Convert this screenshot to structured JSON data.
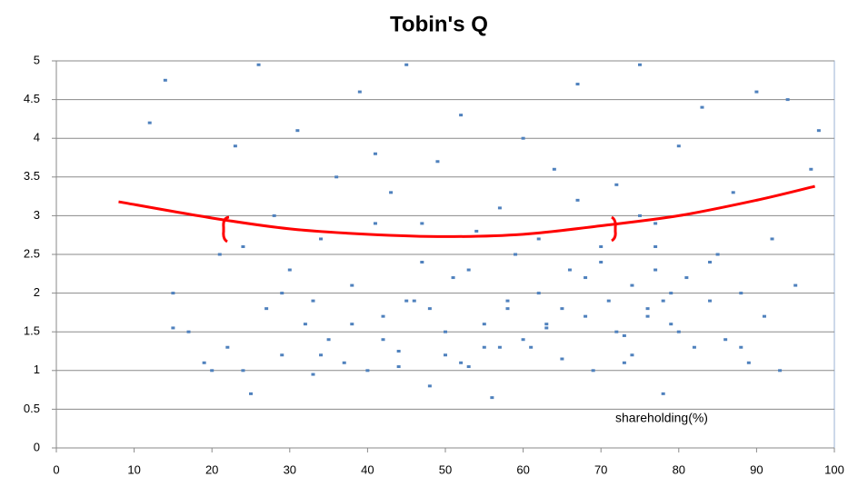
{
  "chart_data": {
    "type": "scatter",
    "title": "Tobin's Q",
    "x_label": "shareholding(%)",
    "xlim": [
      0,
      100
    ],
    "ylim": [
      0,
      5
    ],
    "xticks": [
      0,
      10,
      20,
      30,
      40,
      50,
      60,
      70,
      80,
      90,
      100
    ],
    "yticks": [
      0,
      0.5,
      1,
      1.5,
      2,
      2.5,
      3,
      3.5,
      4,
      4.5,
      5
    ],
    "grid": true,
    "series": [
      {
        "type": "scatter",
        "color": "#4f81bd",
        "x": [
          12,
          14,
          15,
          17,
          19,
          21,
          22,
          23,
          24,
          25,
          26,
          27,
          28,
          29,
          30,
          31,
          32,
          33,
          34,
          35,
          36,
          37,
          38,
          39,
          40,
          41,
          42,
          43,
          44,
          45,
          46,
          47,
          48,
          49,
          50,
          51,
          52,
          53,
          54,
          55,
          56,
          57,
          58,
          59,
          60,
          61,
          62,
          63,
          64,
          65,
          66,
          67,
          68,
          69,
          70,
          71,
          72,
          73,
          74,
          75,
          76,
          77,
          78,
          79,
          80,
          81,
          82,
          83,
          84,
          85,
          86,
          87,
          88,
          89,
          90,
          91,
          92,
          93,
          94,
          95,
          34,
          42,
          48,
          55,
          58,
          63,
          68,
          72,
          76,
          79,
          38,
          45,
          52,
          60,
          65,
          70,
          74,
          77,
          78,
          80,
          24,
          29,
          33,
          41,
          47,
          53,
          62,
          67,
          75,
          84,
          97,
          98,
          15,
          20,
          44,
          50,
          57,
          73,
          77,
          88
        ],
        "values": [
          4.2,
          4.75,
          2.0,
          1.5,
          1.1,
          2.5,
          1.3,
          3.9,
          1.0,
          0.7,
          4.95,
          1.8,
          3.0,
          1.2,
          2.3,
          4.1,
          1.6,
          0.95,
          2.7,
          1.4,
          3.5,
          1.1,
          2.1,
          4.6,
          1.0,
          2.9,
          1.7,
          3.3,
          1.25,
          4.95,
          1.9,
          2.4,
          0.8,
          3.7,
          1.5,
          2.2,
          4.3,
          1.05,
          2.8,
          1.6,
          0.65,
          3.1,
          1.8,
          2.5,
          4.0,
          1.3,
          2.0,
          1.55,
          3.6,
          1.15,
          2.3,
          4.7,
          1.7,
          1.0,
          2.6,
          1.9,
          3.4,
          1.45,
          2.1,
          4.95,
          1.8,
          2.9,
          0.7,
          1.6,
          3.9,
          2.2,
          1.3,
          4.4,
          1.9,
          2.5,
          1.4,
          3.3,
          2.0,
          1.1,
          4.6,
          1.7,
          2.7,
          1.0,
          4.5,
          2.1,
          1.2,
          1.4,
          1.8,
          1.3,
          1.9,
          1.6,
          2.2,
          1.5,
          1.7,
          2.0,
          1.6,
          1.9,
          1.1,
          1.4,
          1.8,
          2.4,
          1.2,
          2.6,
          1.9,
          1.5,
          2.6,
          2.0,
          1.9,
          3.8,
          2.9,
          2.3,
          2.7,
          3.2,
          3.0,
          2.4,
          3.6,
          4.1,
          1.55,
          1.0,
          1.05,
          1.2,
          1.3,
          1.1,
          2.3,
          1.3
        ]
      },
      {
        "type": "line",
        "color": "#ff0000",
        "x": [
          8,
          20,
          30,
          40,
          50,
          60,
          70,
          80,
          90,
          97.5
        ],
        "values": [
          3.18,
          2.97,
          2.83,
          2.76,
          2.73,
          2.76,
          2.87,
          3.0,
          3.2,
          3.38
        ]
      }
    ]
  }
}
